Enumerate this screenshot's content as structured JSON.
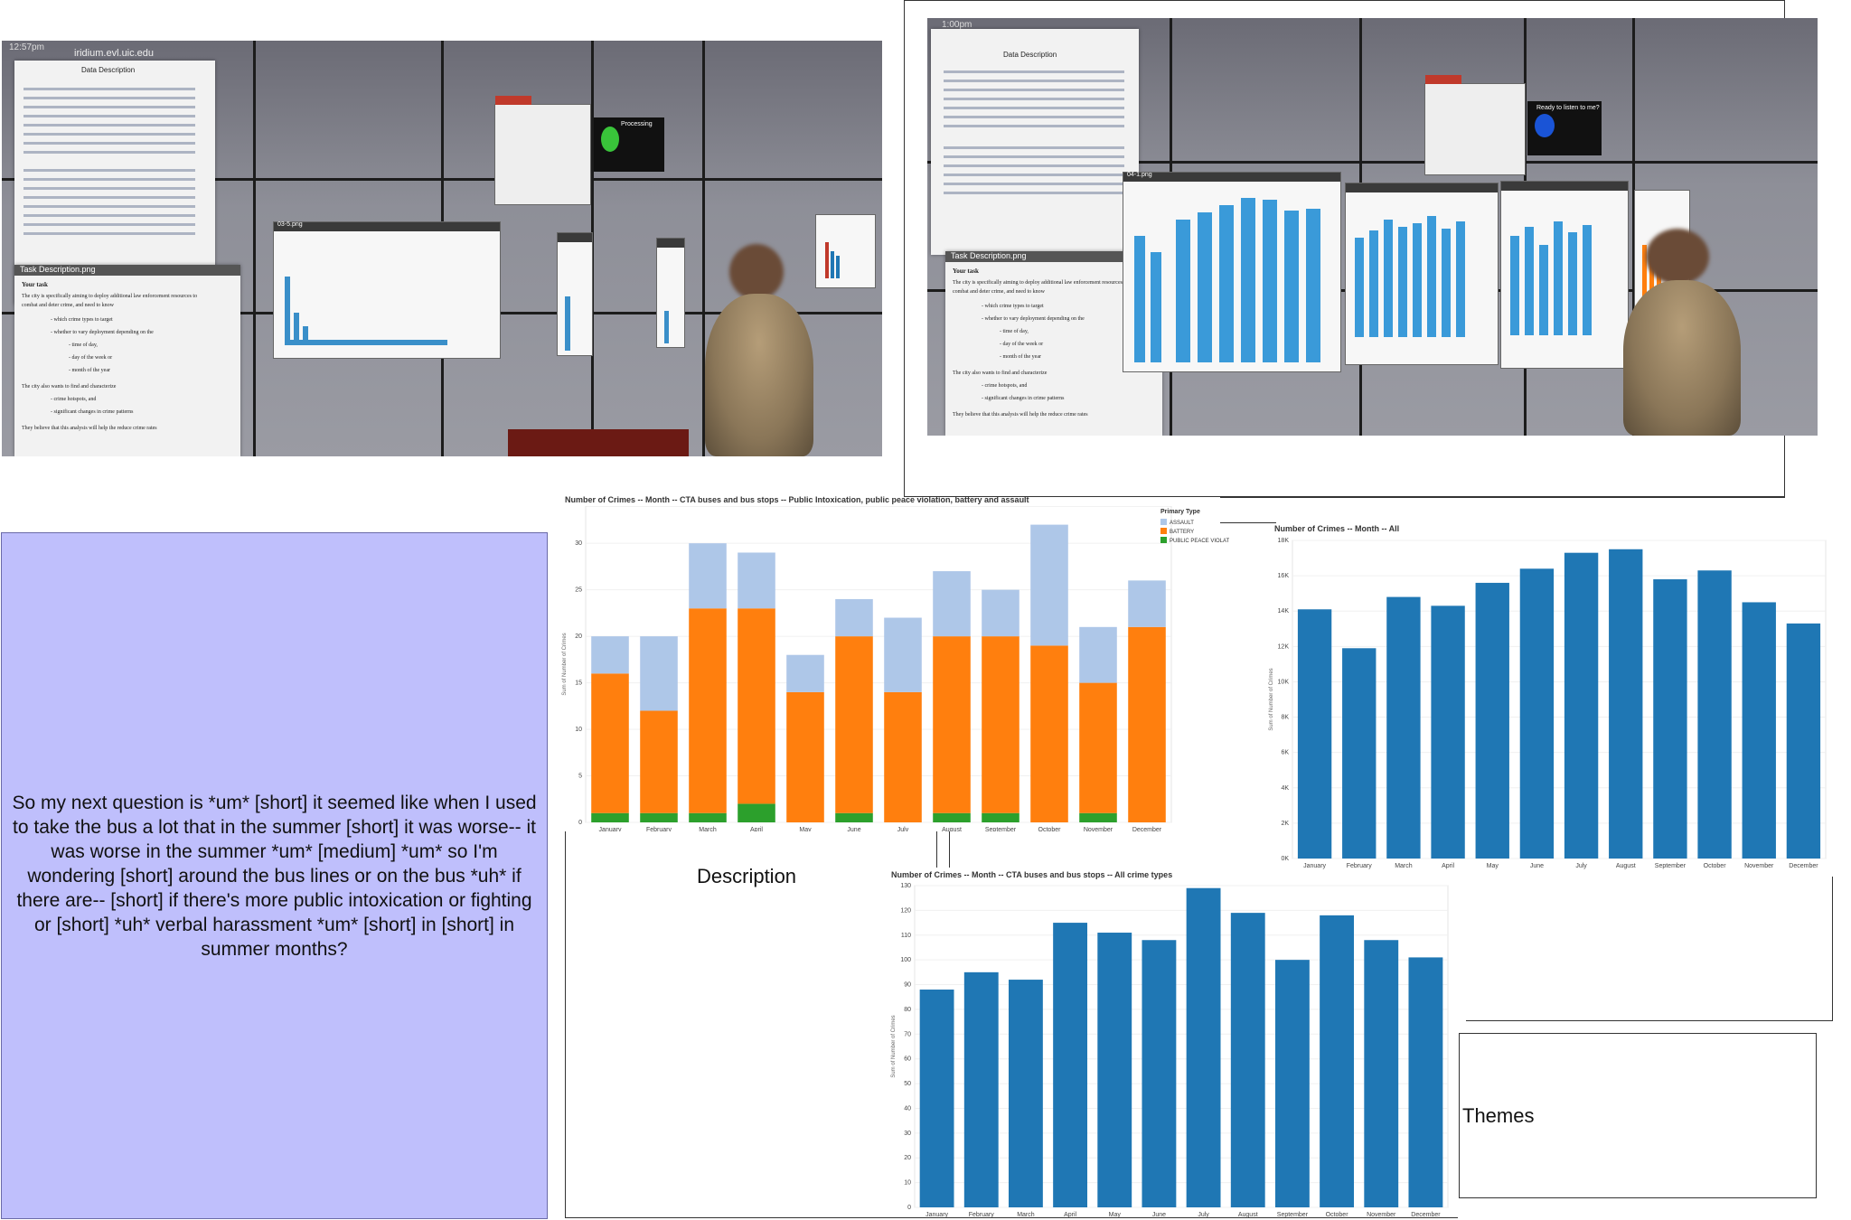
{
  "photos": {
    "left": {
      "clock": "12:57pm",
      "host": "iridium.evl.uic.edu",
      "doc_title": "Data Description",
      "task_title": "Task Description.png",
      "chart_window_title": "03-5.png",
      "task_lines": [
        "Your task",
        "The city is specifically aiming to deploy additional law enforcement resources to",
        "combat and deter crime, and need to know",
        "- which crime types to target",
        "- whether to vary deployment depending on the",
        "- time of day,",
        "- day of the week or",
        "- month of the year",
        "The city also wants to find and characterize",
        "- crime hotspots, and",
        "- significant changes in crime patterns",
        "They believe that this analysis will help the reduce crime rates"
      ],
      "status_text": "Processing"
    },
    "right": {
      "clock": "1:00pm",
      "doc_title": "Data Description",
      "task_title": "Task Description.png",
      "chart_window_title": "04-1.png",
      "status_text": "Ready to listen to me?",
      "task_lines": [
        "Your task",
        "The city is specifically aiming to deploy additional law enforcement resources to",
        "combat and deter crime, and need to know",
        "- which crime types to target",
        "- whether to vary deployment depending on the",
        "- time of day,",
        "- day of the week or",
        "- month of the year",
        "The city also wants to find and characterize",
        "- crime hotspots, and",
        "- significant changes in crime patterns",
        "They believe that this analysis will help the reduce crime rates"
      ]
    }
  },
  "quote": "So my next question is *um* [short] it seemed like when I used to take the bus a lot that in the summer [short] it was worse-- it was worse in the summer *um* [medium] *um* so I'm wondering [short] around the bus lines or on the bus *uh* if there are-- [short] if there's more public intoxication or fighting or [short] *uh* verbal harassment *um* [short] in [short] in summer months?",
  "labels": {
    "description": "Description",
    "themes": "Themes"
  },
  "colors": {
    "assault": "#aec7e8",
    "battery": "#ff7f0e",
    "public_peace_violation": "#2ca02c",
    "bar_blue": "#1f77b4",
    "quote_bg": "#bfbffc"
  },
  "chart_data": [
    {
      "type": "bar",
      "stacked": true,
      "title": "Number of Crimes -- Month -- CTA buses and bus stops -- Public Intoxication, public peace violation, battery and assault",
      "ylabel": "Sum of Number of Crimes",
      "xlabel": "",
      "categories": [
        "January",
        "February",
        "March",
        "April",
        "May",
        "June",
        "July",
        "August",
        "September",
        "October",
        "November",
        "December"
      ],
      "ylim": [
        0,
        34
      ],
      "yticks": [
        0,
        5,
        10,
        15,
        20,
        25,
        30
      ],
      "legend_title": "Primary Type",
      "legend_position": "top-right",
      "series": [
        {
          "name": "PUBLIC PEACE VIOLATION",
          "color_key": "public_peace_violation",
          "values": [
            1,
            1,
            1,
            2,
            0,
            1,
            0,
            1,
            1,
            0,
            1,
            0
          ]
        },
        {
          "name": "BATTERY",
          "color_key": "battery",
          "values": [
            15,
            11,
            22,
            21,
            14,
            19,
            14,
            19,
            19,
            19,
            14,
            21
          ]
        },
        {
          "name": "ASSAULT",
          "color_key": "assault",
          "values": [
            4,
            8,
            7,
            6,
            4,
            4,
            8,
            7,
            5,
            13,
            6,
            5
          ]
        }
      ],
      "legend_order": [
        "ASSAULT",
        "BATTERY",
        "PUBLIC PEACE VIOLATION"
      ]
    },
    {
      "type": "bar",
      "title": "Number of Crimes -- Month -- All",
      "ylabel": "Sum of Number of Crimes",
      "xlabel": "",
      "categories": [
        "January",
        "February",
        "March",
        "April",
        "May",
        "June",
        "July",
        "August",
        "September",
        "October",
        "November",
        "December"
      ],
      "values": [
        14100,
        11900,
        14800,
        14300,
        15600,
        16400,
        17300,
        17500,
        15800,
        16300,
        14500,
        13300
      ],
      "ylim": [
        0,
        18000
      ],
      "yticks": [
        0,
        2000,
        4000,
        6000,
        8000,
        10000,
        12000,
        14000,
        16000,
        18000
      ],
      "ytick_labels": [
        "0K",
        "2K",
        "4K",
        "6K",
        "8K",
        "10K",
        "12K",
        "14K",
        "16K",
        "18K"
      ]
    },
    {
      "type": "bar",
      "title": "Number of Crimes -- Month -- CTA buses and bus stops -- All crime types",
      "ylabel": "Sum of Number of Crimes",
      "xlabel": "",
      "categories": [
        "January",
        "February",
        "March",
        "April",
        "May",
        "June",
        "July",
        "August",
        "September",
        "October",
        "November",
        "December"
      ],
      "values": [
        88,
        95,
        92,
        115,
        111,
        108,
        129,
        119,
        100,
        118,
        108,
        101
      ],
      "ylim": [
        0,
        130
      ],
      "yticks": [
        0,
        10,
        20,
        30,
        40,
        50,
        60,
        70,
        80,
        90,
        100,
        110,
        120,
        130
      ]
    }
  ]
}
